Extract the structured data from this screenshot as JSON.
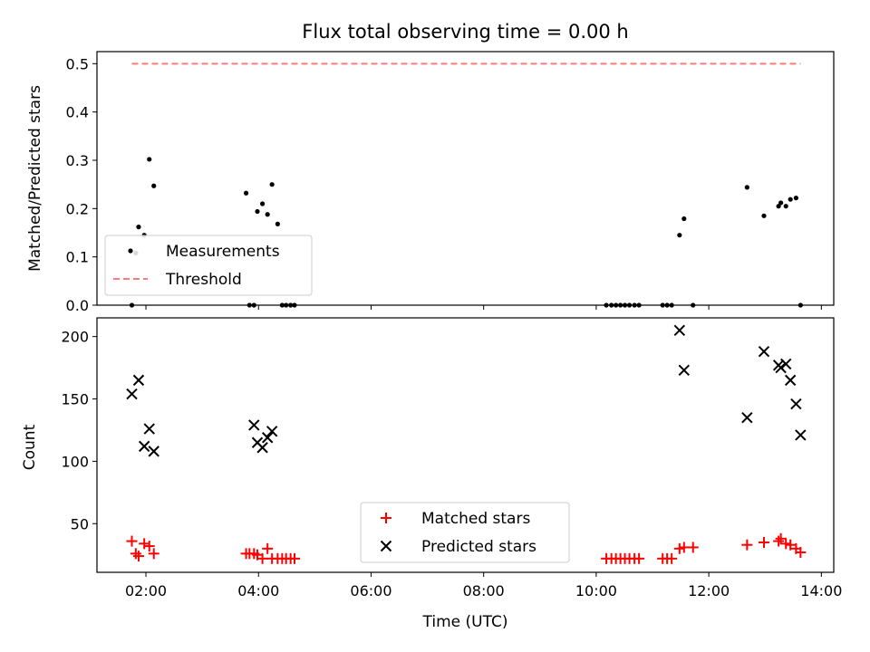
{
  "chart_data": [
    {
      "type": "scatter",
      "title": "Flux total observing time = 0.00 h",
      "xlabel": "",
      "ylabel": "Matched/Predicted stars",
      "xlim": [
        1.13,
        14.22
      ],
      "ylim": [
        0,
        0.525
      ],
      "xticks": [
        2,
        4,
        6,
        8,
        10,
        12,
        14
      ],
      "yticks": [
        0.0,
        0.1,
        0.2,
        0.3,
        0.4,
        0.5
      ],
      "ytick_labels": [
        "0.0",
        "0.1",
        "0.2",
        "0.3",
        "0.4",
        "0.5"
      ],
      "grid": false,
      "legend": "lower-left",
      "series": [
        {
          "name": "Measurements",
          "marker": "dot",
          "color": "#000000",
          "x": [
            1.75,
            1.82,
            1.87,
            1.97,
            2.06,
            2.14,
            3.78,
            3.84,
            3.92,
            3.98,
            4.07,
            4.16,
            4.24,
            4.34,
            4.42,
            4.49,
            4.57,
            4.64,
            10.18,
            10.27,
            10.35,
            10.43,
            10.51,
            10.59,
            10.68,
            10.76,
            11.18,
            11.26,
            11.34,
            11.48,
            11.56,
            11.72,
            12.68,
            12.98,
            13.24,
            13.28,
            13.37,
            13.45,
            13.55,
            13.63
          ],
          "y": [
            0.0,
            0.108,
            0.162,
            0.145,
            0.302,
            0.247,
            0.232,
            0.0,
            0.0,
            0.194,
            0.21,
            0.188,
            0.25,
            0.168,
            0.0,
            0.0,
            0.0,
            0.0,
            0.0,
            0.0,
            0.0,
            0.0,
            0.0,
            0.0,
            0.0,
            0.0,
            0.0,
            0.0,
            0.0,
            0.145,
            0.179,
            0.0,
            0.244,
            0.185,
            0.205,
            0.212,
            0.205,
            0.219,
            0.222,
            0.0
          ]
        },
        {
          "name": "Threshold",
          "line": "dashed",
          "color": "#ff7b7b",
          "x": [
            1.75,
            13.63
          ],
          "y": [
            0.5,
            0.5
          ]
        }
      ]
    },
    {
      "type": "scatter",
      "title": "",
      "xlabel": "Time (UTC)",
      "ylabel": "Count",
      "xlim": [
        1.13,
        14.22
      ],
      "ylim": [
        11,
        215
      ],
      "xticks": [
        2,
        4,
        6,
        8,
        10,
        12,
        14
      ],
      "xtick_labels": [
        "02:00",
        "04:00",
        "06:00",
        "08:00",
        "10:00",
        "12:00",
        "14:00"
      ],
      "yticks": [
        50,
        100,
        150,
        200
      ],
      "ytick_labels": [
        "50",
        "100",
        "150",
        "200"
      ],
      "grid": false,
      "legend": "lower-center",
      "series": [
        {
          "name": "Matched stars",
          "marker": "plus",
          "color": "#ff0000",
          "x": [
            1.75,
            1.82,
            1.87,
            1.97,
            2.06,
            2.14,
            3.78,
            3.84,
            3.92,
            3.98,
            4.07,
            4.16,
            4.24,
            4.34,
            4.42,
            4.49,
            4.57,
            4.64,
            10.18,
            10.27,
            10.35,
            10.43,
            10.51,
            10.59,
            10.68,
            10.76,
            11.18,
            11.26,
            11.34,
            11.48,
            11.56,
            11.72,
            12.68,
            12.98,
            13.24,
            13.28,
            13.37,
            13.45,
            13.55,
            13.63
          ],
          "y": [
            36,
            26,
            24,
            34,
            32,
            26,
            26,
            26,
            26,
            25,
            22,
            30,
            22,
            22,
            22,
            22,
            22,
            22,
            22,
            22,
            22,
            22,
            22,
            22,
            22,
            22,
            22,
            22,
            22,
            30,
            31,
            31,
            33,
            35,
            36,
            38,
            34,
            33,
            30,
            27
          ]
        },
        {
          "name": "Predicted stars",
          "marker": "x",
          "color": "#000000",
          "x": [
            1.75,
            1.87,
            1.97,
            2.06,
            2.14,
            3.92,
            3.98,
            4.07,
            4.16,
            4.24,
            11.48,
            11.56,
            12.68,
            12.98,
            13.24,
            13.28,
            13.37,
            13.45,
            13.55,
            13.63
          ],
          "y": [
            154,
            165,
            112,
            126,
            108,
            129,
            115,
            111,
            119,
            124,
            205,
            173,
            135,
            188,
            177,
            175,
            178,
            165,
            146,
            121
          ]
        }
      ]
    }
  ]
}
